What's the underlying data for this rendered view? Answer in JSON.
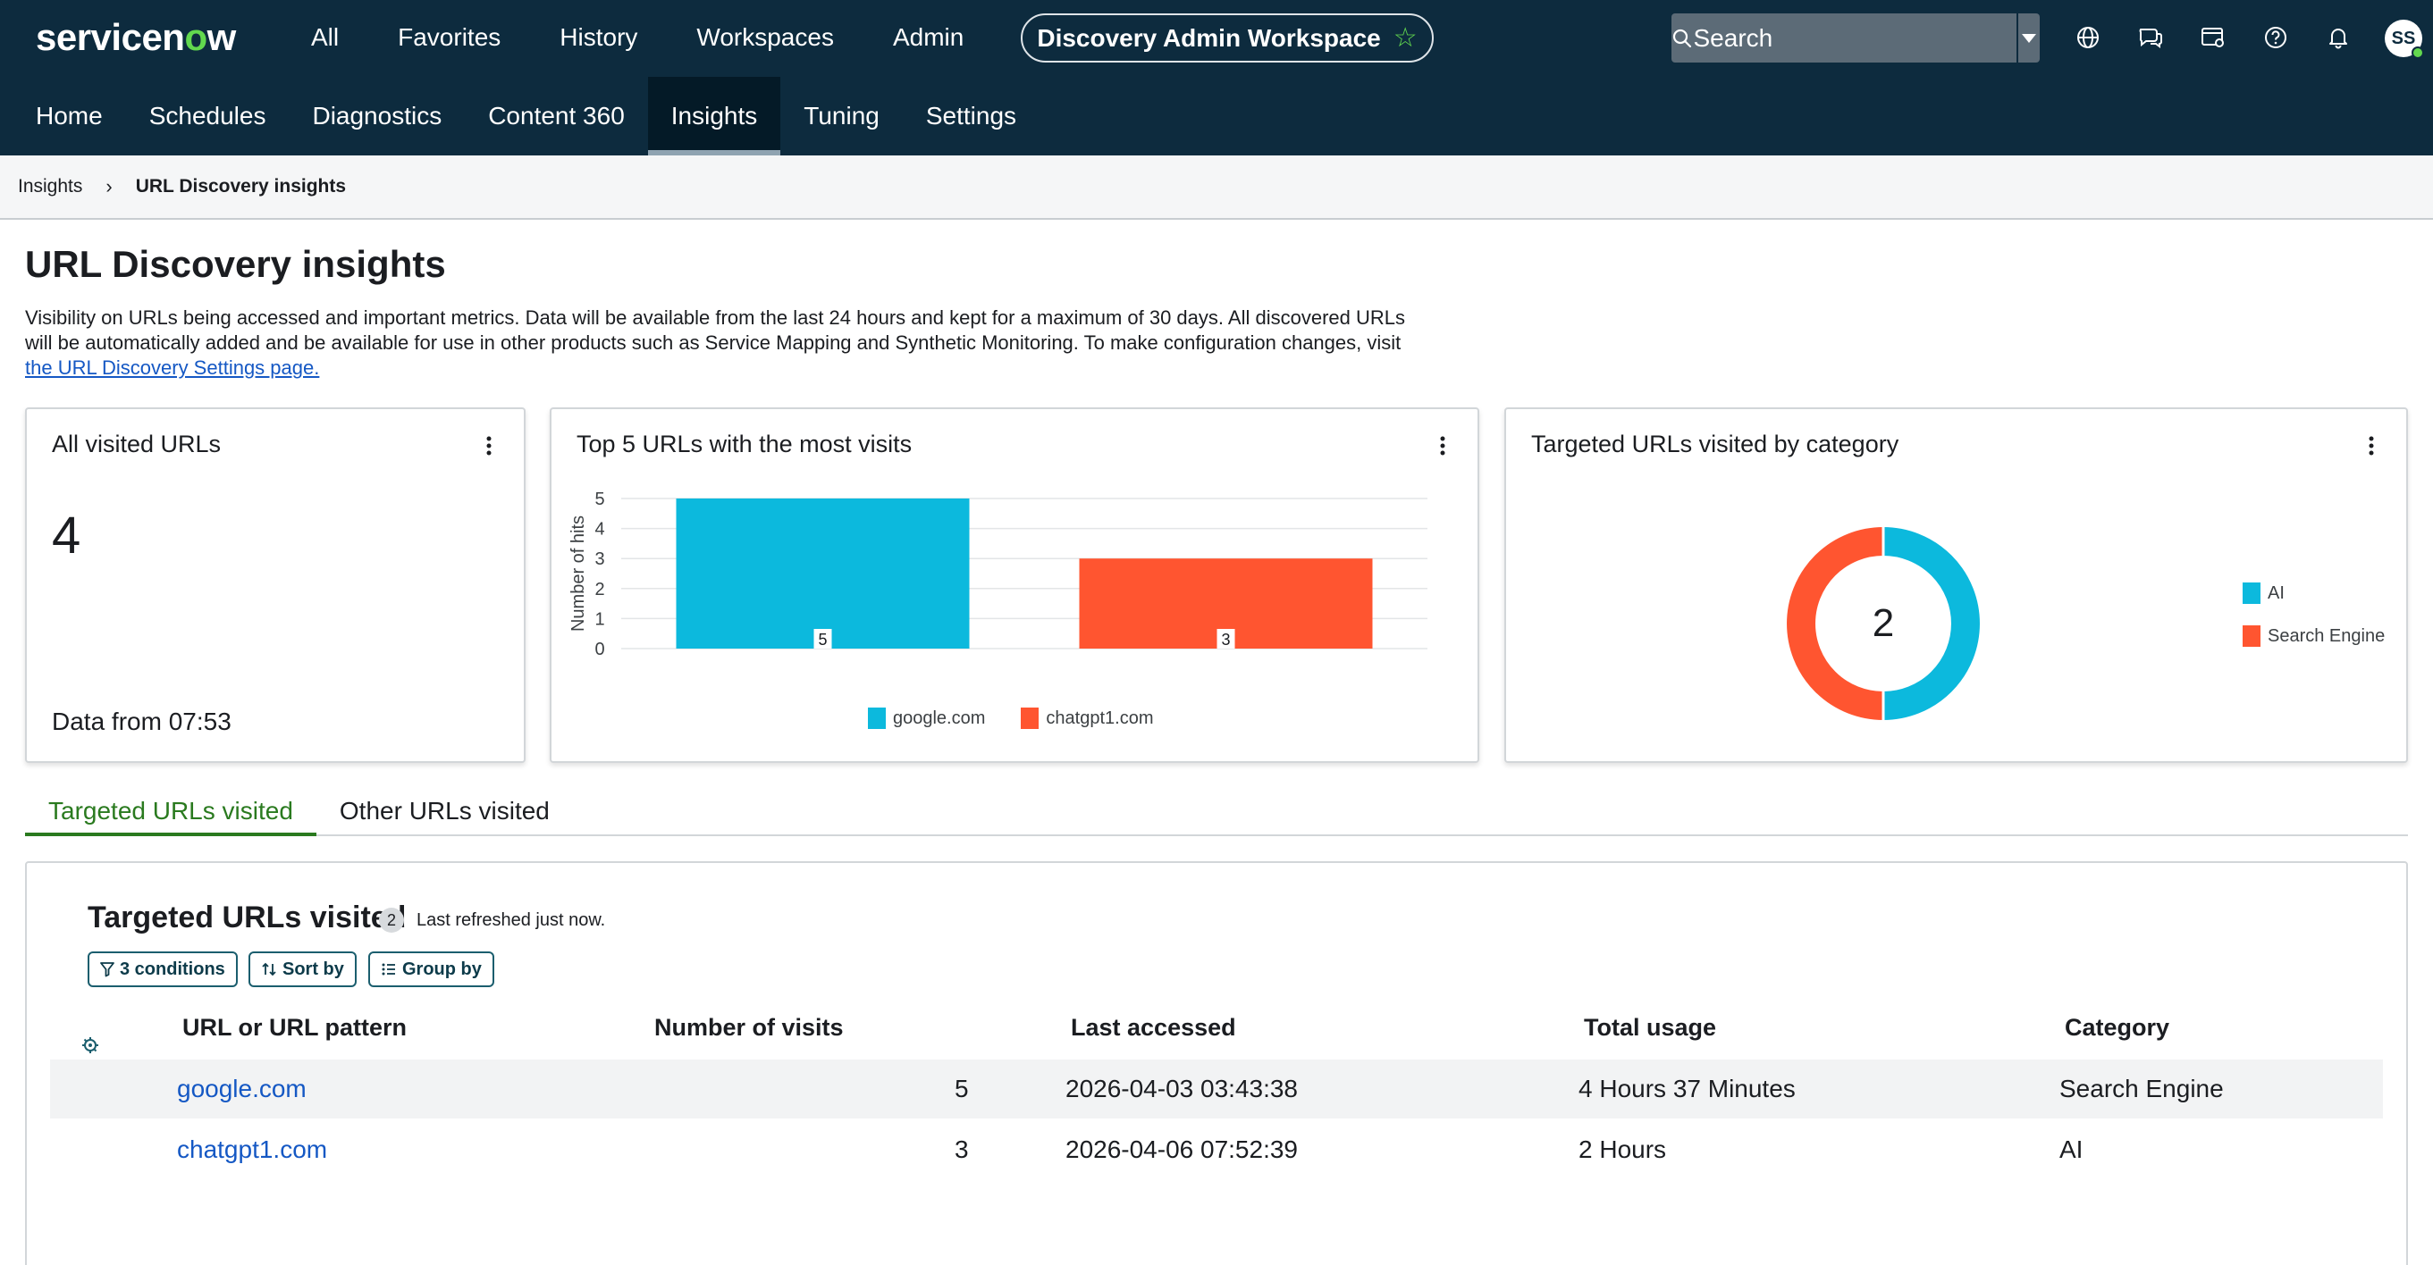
{
  "header": {
    "logo_prefix": "servicen",
    "logo_o": "o",
    "logo_suffix": "w",
    "nav": [
      "All",
      "Favorites",
      "History",
      "Workspaces",
      "Admin"
    ],
    "workspace": "Discovery Admin Workspace",
    "search_placeholder": "Search",
    "avatar_initials": "SS",
    "icons": [
      "globe-icon",
      "chat-icon",
      "app-switcher-icon",
      "help-icon",
      "bell-icon"
    ]
  },
  "subnav": {
    "tabs": [
      "Home",
      "Schedules",
      "Diagnostics",
      "Content 360",
      "Insights",
      "Tuning",
      "Settings"
    ],
    "active": "Insights"
  },
  "breadcrumb": {
    "parent": "Insights",
    "current": "URL Discovery insights"
  },
  "page": {
    "title": "URL Discovery insights",
    "description": "Visibility on URLs being accessed and important metrics. Data will be available from the last 24 hours and kept for a maximum of 30 days. All discovered URLs will be automatically added and be available for use in other products such as Service Mapping and Synthetic Monitoring. To make configuration changes, visit ",
    "settings_link": "the URL Discovery Settings page."
  },
  "cards": {
    "visited": {
      "title": "All visited URLs",
      "value": "4",
      "footer": "Data from 07:53"
    },
    "top5": {
      "title": "Top 5 URLs with the most visits"
    },
    "category": {
      "title": "Targeted URLs visited by category",
      "center": "2"
    }
  },
  "chart_data": [
    {
      "type": "bar",
      "title": "Top 5 URLs with the most visits",
      "categories": [
        "google.com",
        "chatgpt1.com"
      ],
      "values": [
        5,
        3
      ],
      "colors": [
        "#0cb9dd",
        "#ff5530"
      ],
      "ylabel": "Number of hits",
      "xlabel": "",
      "ylim": [
        0,
        5
      ],
      "yticks": [
        0,
        1,
        2,
        3,
        4,
        5
      ],
      "data_labels": [
        "5",
        "3"
      ],
      "legend": [
        "google.com",
        "chatgpt1.com"
      ],
      "legend_position": "bottom",
      "grid": true
    },
    {
      "type": "pie",
      "title": "Targeted URLs visited by category",
      "labels": [
        "AI",
        "Search Engine"
      ],
      "values": [
        1,
        1
      ],
      "colors": [
        "#0cb9dd",
        "#ff5530"
      ],
      "center_label": "2",
      "legend_position": "right"
    }
  ],
  "tabs": {
    "items": [
      "Targeted URLs visited",
      "Other URLs visited"
    ],
    "active": "Targeted URLs visited"
  },
  "table": {
    "title": "Targeted URLs visited",
    "count": "2",
    "refreshed": "Last refreshed just now.",
    "filters": [
      "3 conditions",
      "Sort by",
      "Group by"
    ],
    "columns": [
      "URL or URL pattern",
      "Number of visits",
      "Last accessed",
      "Total usage",
      "Category"
    ],
    "rows": [
      {
        "url": "google.com",
        "visits": "5",
        "last": "2026-04-03 03:43:38",
        "usage": "4 Hours 37 Minutes",
        "category": "Search Engine"
      },
      {
        "url": "chatgpt1.com",
        "visits": "3",
        "last": "2026-04-06 07:52:39",
        "usage": "2 Hours",
        "category": "AI"
      }
    ]
  }
}
